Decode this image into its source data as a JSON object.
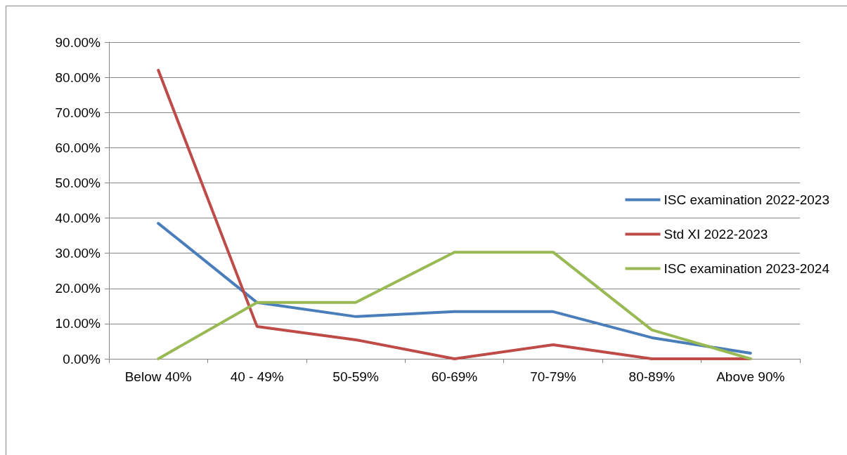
{
  "chart_data": {
    "type": "line",
    "categories": [
      "Below 40%",
      "40 - 49%",
      "50-59%",
      "60-69%",
      "70-79%",
      "80-89%",
      "Above 90%"
    ],
    "series": [
      {
        "name": "ISC examination 2022-2023",
        "color": "#4a7ebb",
        "values": [
          38.5,
          16,
          12,
          13.4,
          13.4,
          6,
          1.6
        ]
      },
      {
        "name": "Std XI 2022-2023",
        "color": "#be4b48",
        "values": [
          82,
          9.2,
          5.4,
          0,
          4,
          0,
          0
        ]
      },
      {
        "name": "ISC examination 2023-2024",
        "color": "#98b954",
        "values": [
          0,
          16,
          16,
          30.3,
          30.3,
          8.2,
          0
        ]
      }
    ],
    "ylim": [
      0,
      90
    ],
    "yticks": [
      {
        "value": 0,
        "label": "0.00%"
      },
      {
        "value": 10,
        "label": "10.00%"
      },
      {
        "value": 20,
        "label": "20.00%"
      },
      {
        "value": 30,
        "label": "30.00%"
      },
      {
        "value": 40,
        "label": "40.00%"
      },
      {
        "value": 50,
        "label": "50.00%"
      },
      {
        "value": 60,
        "label": "60.00%"
      },
      {
        "value": 70,
        "label": "70.00%"
      },
      {
        "value": 80,
        "label": "80.00%"
      },
      {
        "value": 90,
        "label": "90.00%"
      }
    ],
    "grid": "y",
    "legend": "right",
    "marker": "none",
    "line_style": "solid"
  }
}
